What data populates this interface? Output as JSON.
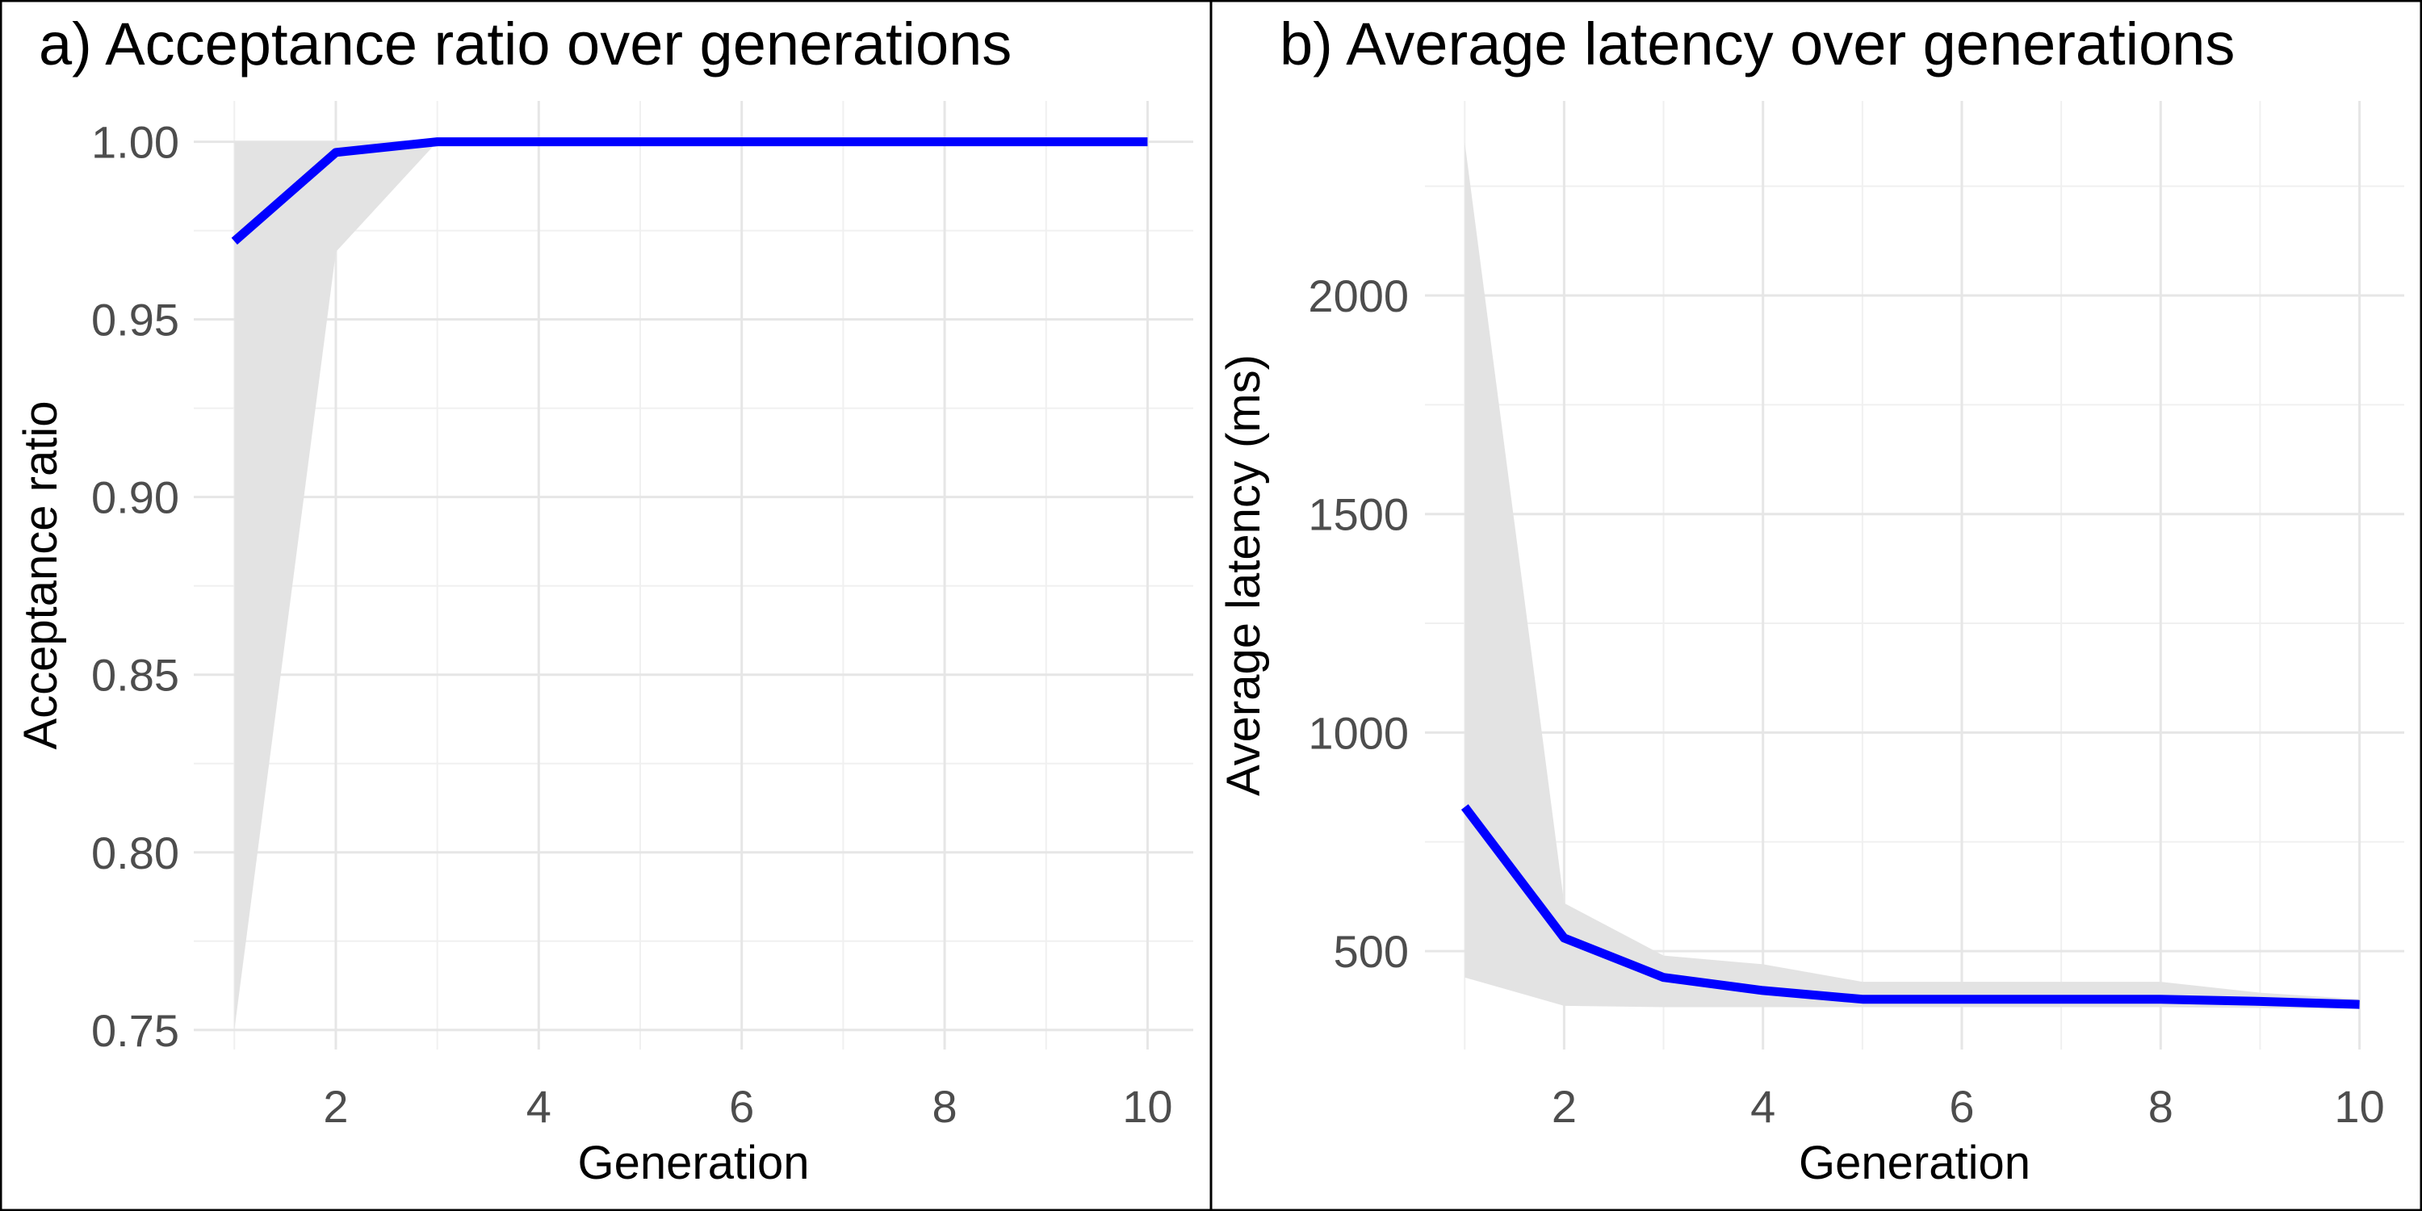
{
  "colors": {
    "line": "#0000ff",
    "band": "#e3e3e3",
    "grid_major": "#e6e6e6",
    "grid_minor": "#f0f0f0",
    "border": "#000000"
  },
  "chart_data": [
    {
      "type": "line",
      "title": "a) Acceptance ratio over generations",
      "xlabel": "Generation",
      "ylabel": "Acceptance ratio",
      "xlim": [
        0.6,
        10.45
      ],
      "ylim": [
        0.7445,
        1.0115
      ],
      "x_ticks": [
        2,
        4,
        6,
        8,
        10
      ],
      "x_tick_labels": [
        "2",
        "4",
        "6",
        "8",
        "10"
      ],
      "y_ticks": [
        0.75,
        0.8,
        0.85,
        0.9,
        0.95,
        1.0
      ],
      "y_tick_labels": [
        "0.75",
        "0.80",
        "0.85",
        "0.90",
        "0.95",
        "1.00"
      ],
      "grid": true,
      "x": [
        1,
        2,
        3,
        4,
        5,
        6,
        7,
        8,
        9,
        10
      ],
      "series": [
        {
          "values": [
            0.972,
            0.997,
            1.0,
            1.0,
            1.0,
            1.0,
            1.0,
            1.0,
            1.0,
            1.0
          ],
          "band_lower": [
            0.75,
            0.969,
            1.0,
            1.0,
            1.0,
            1.0,
            1.0,
            1.0,
            1.0,
            1.0
          ],
          "band_upper": [
            1.0,
            1.0,
            1.0,
            1.0,
            1.0,
            1.0,
            1.0,
            1.0,
            1.0,
            1.0
          ]
        }
      ]
    },
    {
      "type": "line",
      "title": "b) Average latency over generations",
      "xlabel": "Generation",
      "ylabel": "Average latency (ms)",
      "xlim": [
        0.6,
        10.45
      ],
      "ylim": [
        275,
        2445
      ],
      "x_ticks": [
        2,
        4,
        6,
        8,
        10
      ],
      "x_tick_labels": [
        "2",
        "4",
        "6",
        "8",
        "10"
      ],
      "y_ticks": [
        500,
        1000,
        1500,
        2000
      ],
      "y_tick_labels": [
        "500",
        "1000",
        "1500",
        "2000"
      ],
      "grid": true,
      "x": [
        1,
        2,
        3,
        4,
        5,
        6,
        7,
        8,
        9,
        10
      ],
      "series": [
        {
          "values": [
            830,
            530,
            440,
            410,
            390,
            390,
            390,
            390,
            385,
            378
          ],
          "band_lower": [
            440,
            375,
            372,
            372,
            372,
            372,
            372,
            372,
            370,
            368
          ],
          "band_upper": [
            2350,
            610,
            490,
            470,
            430,
            430,
            430,
            430,
            405,
            390
          ]
        }
      ]
    }
  ]
}
